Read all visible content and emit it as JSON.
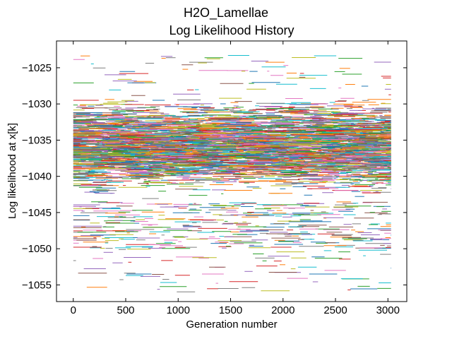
{
  "chart_data": {
    "type": "line",
    "title": "H2O_Lamellae",
    "subtitle": "Log Likelihood History",
    "xlabel": "Generation number",
    "ylabel": "Log likelihood at x[k]",
    "xlim": [
      -160,
      3180
    ],
    "ylim": [
      -1057.3,
      -1021.3
    ],
    "x_ticks": [
      0,
      500,
      1000,
      1500,
      2000,
      2500,
      3000
    ],
    "y_ticks": [
      -1025,
      -1030,
      -1035,
      -1040,
      -1045,
      -1050,
      -1055
    ],
    "x_tick_labels": [
      "0",
      "500",
      "1000",
      "1500",
      "2000",
      "2500",
      "3000"
    ],
    "y_tick_labels": [
      "−1025",
      "−1030",
      "−1035",
      "−1040",
      "−1045",
      "−1050",
      "−1055"
    ],
    "grid": false,
    "legend": "none",
    "series_description": "many chains, each holding a constant log likelihood over runs of generations (0 to 3000); bulk of values between -1043 and -1028, sparse values down to about -1056",
    "x_range": [
      0,
      3030
    ],
    "value_range": [
      -1056,
      -1023
    ],
    "dense_range": [
      -1043.5,
      -1028.2
    ],
    "palette": [
      "#1f77b4",
      "#ff7f0e",
      "#2ca02c",
      "#d62728",
      "#9467bd",
      "#8c564b",
      "#e377c2",
      "#7f7f7f",
      "#bcbd22",
      "#17becf"
    ]
  }
}
